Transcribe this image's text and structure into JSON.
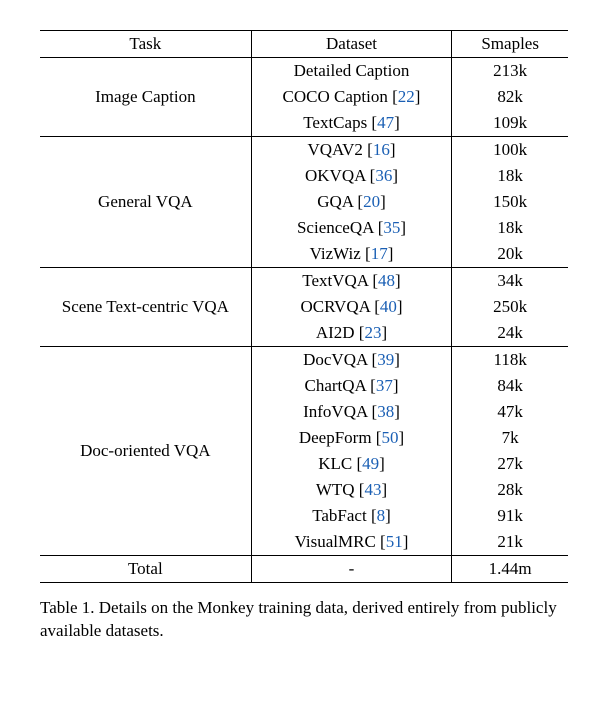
{
  "cite_color": "#1a5fb4",
  "header": {
    "task": "Task",
    "dataset": "Dataset",
    "samples": "Smaples"
  },
  "groups": [
    {
      "task": "Image Caption",
      "rows": [
        {
          "dataset": "Detailed Caption",
          "cite": "",
          "samples": "213k"
        },
        {
          "dataset": "COCO Caption",
          "cite": "22",
          "samples": "82k"
        },
        {
          "dataset": "TextCaps",
          "cite": "47",
          "samples": "109k"
        }
      ]
    },
    {
      "task": "General VQA",
      "rows": [
        {
          "dataset": "VQAV2",
          "cite": "16",
          "samples": "100k"
        },
        {
          "dataset": "OKVQA",
          "cite": "36",
          "samples": "18k"
        },
        {
          "dataset": "GQA",
          "cite": "20",
          "samples": "150k"
        },
        {
          "dataset": "ScienceQA",
          "cite": "35",
          "samples": "18k"
        },
        {
          "dataset": "VizWiz",
          "cite": "17",
          "samples": "20k"
        }
      ]
    },
    {
      "task": "Scene Text-centric VQA",
      "rows": [
        {
          "dataset": "TextVQA",
          "cite": "48",
          "samples": "34k"
        },
        {
          "dataset": "OCRVQA",
          "cite": "40",
          "samples": "250k"
        },
        {
          "dataset": "AI2D",
          "cite": "23",
          "samples": "24k"
        }
      ]
    },
    {
      "task": "Doc-oriented VQA",
      "rows": [
        {
          "dataset": "DocVQA",
          "cite": "39",
          "samples": "118k"
        },
        {
          "dataset": "ChartQA",
          "cite": "37",
          "samples": "84k"
        },
        {
          "dataset": "InfoVQA",
          "cite": "38",
          "samples": "47k"
        },
        {
          "dataset": "DeepForm",
          "cite": "50",
          "samples": "7k"
        },
        {
          "dataset": "KLC",
          "cite": "49",
          "samples": "27k"
        },
        {
          "dataset": "WTQ",
          "cite": "43",
          "samples": "28k"
        },
        {
          "dataset": "TabFact",
          "cite": "8",
          "samples": "91k"
        },
        {
          "dataset": "VisualMRC",
          "cite": "51",
          "samples": "21k"
        }
      ]
    }
  ],
  "total": {
    "task": "Total",
    "dataset": "-",
    "samples": "1.44m"
  },
  "caption": "Table 1. Details on the Monkey training data, derived entirely from publicly available datasets."
}
